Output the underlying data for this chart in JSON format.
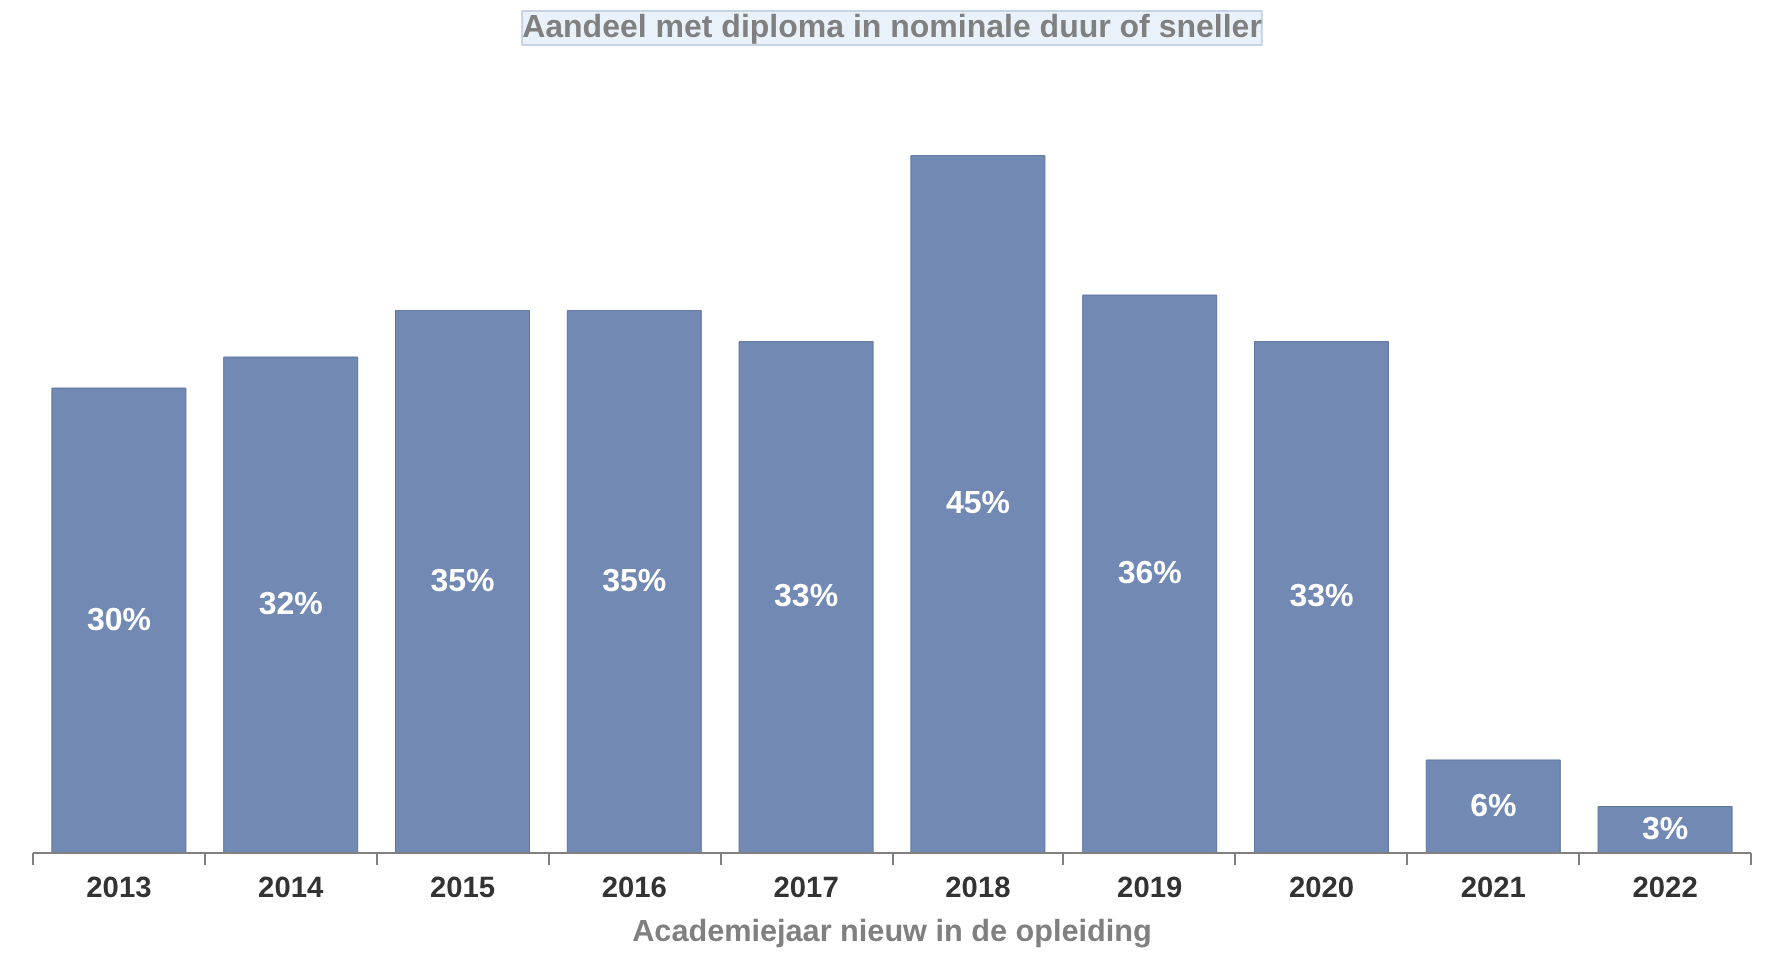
{
  "chart_data": {
    "type": "bar",
    "title": "Aandeel met diploma in nominale duur of sneller",
    "xlabel": "Academiejaar nieuw in de opleiding",
    "categories": [
      "2013",
      "2014",
      "2015",
      "2016",
      "2017",
      "2018",
      "2019",
      "2020",
      "2021",
      "2022"
    ],
    "values": [
      30,
      32,
      35,
      35,
      33,
      45,
      36,
      33,
      6,
      3
    ],
    "value_labels": [
      "30%",
      "32%",
      "35%",
      "35%",
      "33%",
      "45%",
      "36%",
      "33%",
      "6%",
      "3%"
    ],
    "color": "#7189b3",
    "grid": false
  }
}
